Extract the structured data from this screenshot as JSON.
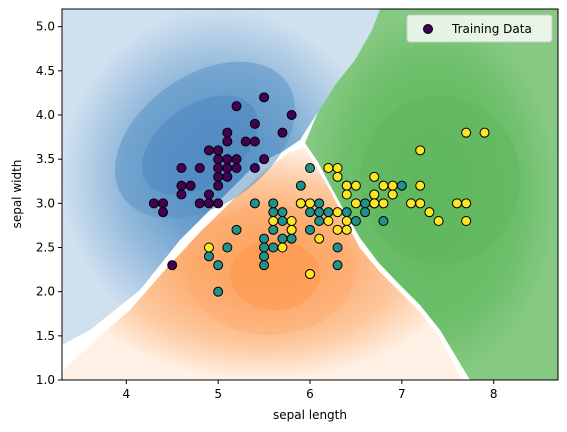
{
  "chart_data": {
    "type": "scatter",
    "title": "",
    "xlabel": "sepal length",
    "ylabel": "sepal width",
    "xlim": [
      3.3,
      8.7
    ],
    "ylim": [
      1.0,
      5.2
    ],
    "xticks": [
      4,
      5,
      6,
      7,
      8
    ],
    "yticks": [
      1.0,
      1.5,
      2.0,
      2.5,
      3.0,
      3.5,
      4.0,
      4.5,
      5.0
    ],
    "grid": false,
    "legend": {
      "placement": "top-right",
      "entries": [
        "Training Data"
      ],
      "marker_color": "#440154"
    },
    "background_regions": {
      "description_colors": {
        "class_0": "#3b7dbf",
        "class_1": "#fd8d3c",
        "class_2": "#41ab5d"
      },
      "class_0_center": [
        4.8,
        3.5
      ],
      "class_1_center": [
        5.7,
        2.2
      ],
      "class_2_center": [
        7.4,
        3.05
      ]
    },
    "series": [
      {
        "color": "#440154",
        "points": [
          [
            4.3,
            3.0
          ],
          [
            4.4,
            3.0
          ],
          [
            4.4,
            2.9
          ],
          [
            4.5,
            2.3
          ],
          [
            4.6,
            3.4
          ],
          [
            4.6,
            3.2
          ],
          [
            4.6,
            3.1
          ],
          [
            4.7,
            3.2
          ],
          [
            4.8,
            3.4
          ],
          [
            4.8,
            3.0
          ],
          [
            4.9,
            3.6
          ],
          [
            4.9,
            3.1
          ],
          [
            4.9,
            3.0
          ],
          [
            5.0,
            3.6
          ],
          [
            5.0,
            3.5
          ],
          [
            5.0,
            3.4
          ],
          [
            5.0,
            3.3
          ],
          [
            5.0,
            3.2
          ],
          [
            5.0,
            3.0
          ],
          [
            5.1,
            3.8
          ],
          [
            5.1,
            3.7
          ],
          [
            5.1,
            3.5
          ],
          [
            5.1,
            3.4
          ],
          [
            5.1,
            3.3
          ],
          [
            5.2,
            4.1
          ],
          [
            5.2,
            3.5
          ],
          [
            5.2,
            3.4
          ],
          [
            5.3,
            3.7
          ],
          [
            5.4,
            3.9
          ],
          [
            5.4,
            3.7
          ],
          [
            5.4,
            3.4
          ],
          [
            5.5,
            4.2
          ],
          [
            5.5,
            3.5
          ],
          [
            5.8,
            4.0
          ],
          [
            5.7,
            3.8
          ]
        ]
      },
      {
        "color": "#21918c",
        "points": [
          [
            4.9,
            2.4
          ],
          [
            5.0,
            2.3
          ],
          [
            5.0,
            2.0
          ],
          [
            5.1,
            2.5
          ],
          [
            5.2,
            2.7
          ],
          [
            5.4,
            3.0
          ],
          [
            5.5,
            2.6
          ],
          [
            5.5,
            2.5
          ],
          [
            5.5,
            2.4
          ],
          [
            5.5,
            2.3
          ],
          [
            5.6,
            3.0
          ],
          [
            5.6,
            2.9
          ],
          [
            5.6,
            2.7
          ],
          [
            5.6,
            2.5
          ],
          [
            5.7,
            2.9
          ],
          [
            5.7,
            2.8
          ],
          [
            5.7,
            2.6
          ],
          [
            5.8,
            2.7
          ],
          [
            5.8,
            2.6
          ],
          [
            5.9,
            3.2
          ],
          [
            5.9,
            3.0
          ],
          [
            6.0,
            3.4
          ],
          [
            6.0,
            2.9
          ],
          [
            6.0,
            2.7
          ],
          [
            6.0,
            2.2
          ],
          [
            6.1,
            3.0
          ],
          [
            6.1,
            2.9
          ],
          [
            6.1,
            2.8
          ],
          [
            6.2,
            2.9
          ],
          [
            6.3,
            2.5
          ],
          [
            6.3,
            2.3
          ],
          [
            6.4,
            3.2
          ],
          [
            6.4,
            2.9
          ],
          [
            6.5,
            2.8
          ],
          [
            6.6,
            3.0
          ],
          [
            6.6,
            2.9
          ],
          [
            6.7,
            3.1
          ],
          [
            6.7,
            3.0
          ],
          [
            6.8,
            2.8
          ],
          [
            6.9,
            3.1
          ],
          [
            7.0,
            3.2
          ]
        ]
      },
      {
        "color": "#fde725",
        "points": [
          [
            4.9,
            2.5
          ],
          [
            5.6,
            2.8
          ],
          [
            5.7,
            2.5
          ],
          [
            5.8,
            2.8
          ],
          [
            5.8,
            2.7
          ],
          [
            5.9,
            3.0
          ],
          [
            6.0,
            3.0
          ],
          [
            6.0,
            2.2
          ],
          [
            6.1,
            2.6
          ],
          [
            6.2,
            3.4
          ],
          [
            6.2,
            2.8
          ],
          [
            6.3,
            3.4
          ],
          [
            6.3,
            3.3
          ],
          [
            6.3,
            2.9
          ],
          [
            6.3,
            2.7
          ],
          [
            6.4,
            3.2
          ],
          [
            6.4,
            3.1
          ],
          [
            6.4,
            2.8
          ],
          [
            6.4,
            2.7
          ],
          [
            6.5,
            3.2
          ],
          [
            6.5,
            3.0
          ],
          [
            6.7,
            3.3
          ],
          [
            6.7,
            3.1
          ],
          [
            6.7,
            3.0
          ],
          [
            6.8,
            3.2
          ],
          [
            6.8,
            3.0
          ],
          [
            6.9,
            3.2
          ],
          [
            6.9,
            3.1
          ],
          [
            7.1,
            3.0
          ],
          [
            7.2,
            3.6
          ],
          [
            7.2,
            3.2
          ],
          [
            7.2,
            3.0
          ],
          [
            7.3,
            2.9
          ],
          [
            7.4,
            2.8
          ],
          [
            7.6,
            3.0
          ],
          [
            7.7,
            3.8
          ],
          [
            7.7,
            3.0
          ],
          [
            7.7,
            2.8
          ],
          [
            7.9,
            3.8
          ]
        ]
      }
    ]
  }
}
